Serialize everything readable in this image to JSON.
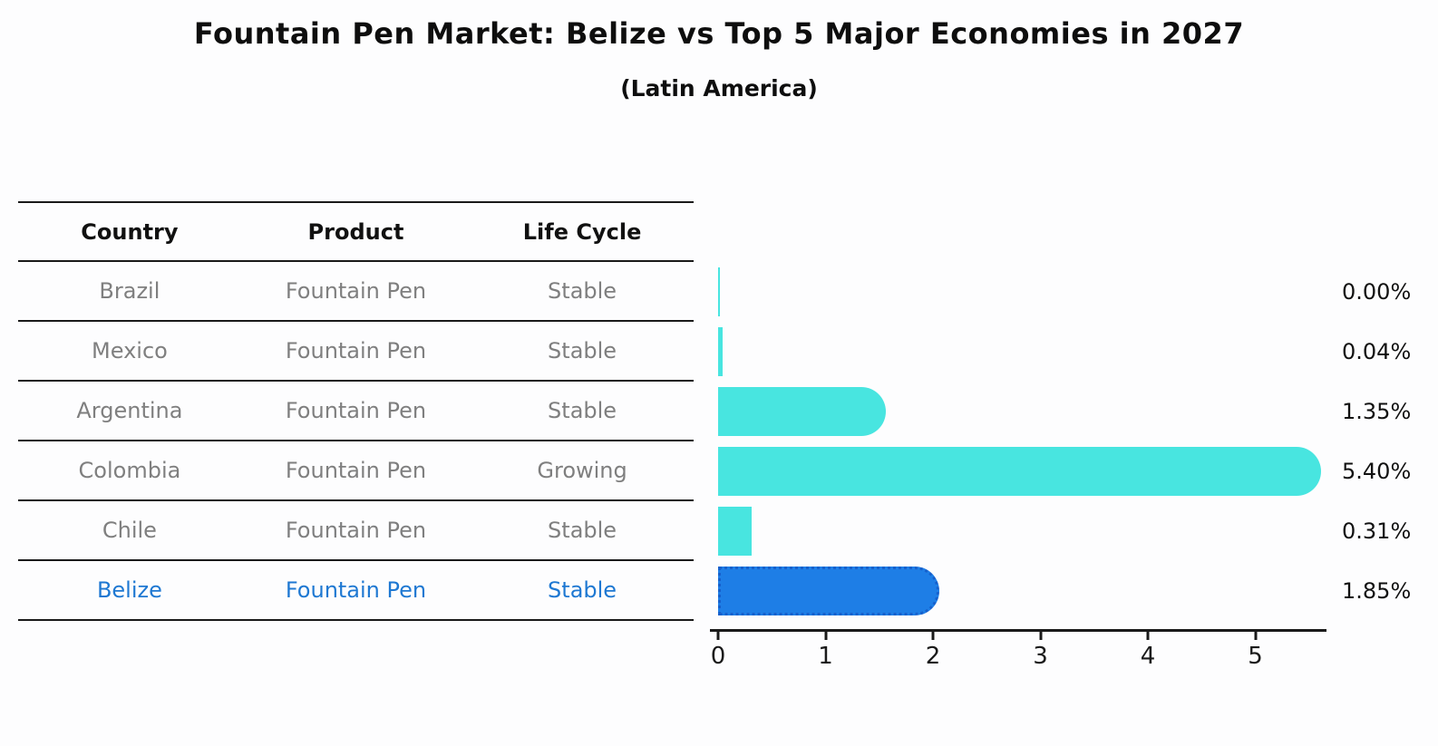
{
  "title": "Fountain Pen Market: Belize vs Top 5 Major Economies in 2027",
  "subtitle": "(Latin America)",
  "table": {
    "columns": [
      "Country",
      "Product",
      "Life Cycle"
    ],
    "rows": [
      {
        "country": "Brazil",
        "product": "Fountain Pen",
        "life_cycle": "Stable",
        "highlight": false
      },
      {
        "country": "Mexico",
        "product": "Fountain Pen",
        "life_cycle": "Stable",
        "highlight": false
      },
      {
        "country": "Argentina",
        "product": "Fountain Pen",
        "life_cycle": "Stable",
        "highlight": false
      },
      {
        "country": "Colombia",
        "product": "Fountain Pen",
        "life_cycle": "Growing",
        "highlight": false
      },
      {
        "country": "Chile",
        "product": "Fountain Pen",
        "life_cycle": "Stable",
        "highlight": false
      },
      {
        "country": "Belize",
        "product": "Fountain Pen",
        "life_cycle": "Stable",
        "highlight": true
      }
    ]
  },
  "chart_data": {
    "type": "bar",
    "orientation": "horizontal",
    "title": "Fountain Pen Market: Belize vs Top 5 Major Economies in 2027",
    "subtitle": "(Latin America)",
    "categories": [
      "Brazil",
      "Mexico",
      "Argentina",
      "Colombia",
      "Chile",
      "Belize"
    ],
    "values": [
      0.0,
      0.04,
      1.35,
      5.4,
      0.31,
      1.85
    ],
    "value_labels": [
      "0.00%",
      "0.04%",
      "1.35%",
      "5.40%",
      "0.31%",
      "1.85%"
    ],
    "xlabel": "",
    "ylabel": "",
    "xlim": [
      0,
      5.65
    ],
    "x_ticks": [
      0,
      1,
      2,
      3,
      4,
      5
    ],
    "grid": false,
    "legend": "none",
    "bar_color": "#48e5e0",
    "highlight_index": 5,
    "highlight_bar_color": "#1e7ee6",
    "highlight_bar_border_color": "#1660cc",
    "highlight_text_color": "#1e78d2",
    "table_text_color": "#7f7f7f",
    "axis_color": "#1a1a1a"
  }
}
